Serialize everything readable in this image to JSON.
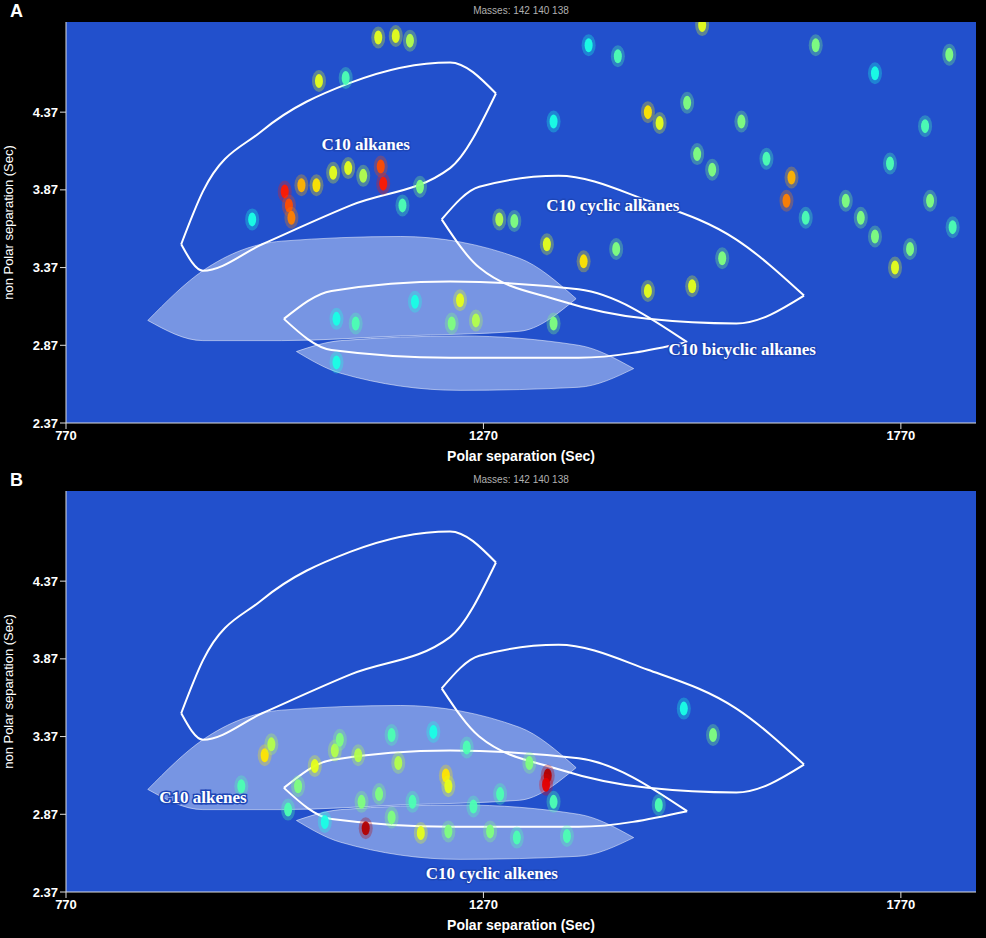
{
  "chart_data": [
    {
      "type": "scatter",
      "title": "A",
      "subtitle": "Masses: 142 140 138",
      "x_label": "Polar separation (Sec)",
      "y_label": "non Polar separation (Sec)",
      "xlim": [
        770,
        1860
      ],
      "ylim": [
        2.37,
        4.95
      ],
      "xticks": [
        770,
        1270,
        1770
      ],
      "yticks": [
        2.37,
        2.87,
        3.37,
        3.87,
        4.37
      ],
      "grid": false,
      "points": {
        "x": [
          1073,
          1144,
          1165,
          1182,
          1105,
          1032,
          1037,
          1040,
          1052,
          1070,
          1090,
          1108,
          1126,
          1147,
          1150,
          1194,
          1173,
          1242,
          1261,
          1232,
          1188,
          1289,
          1307,
          1346,
          1390,
          1429,
          1467,
          1520,
          1556,
          1633,
          1639,
          1656,
          1467,
          1481,
          1514,
          1526,
          1544,
          1579,
          1668,
          1532,
          1704,
          1722,
          1739,
          1763,
          1781,
          1805,
          1832,
          1757,
          1799,
          1828,
          1739,
          1396,
          1354,
          993,
          1354,
          1094,
          1117,
          1094,
          1431,
          1609
        ],
        "y": [
          4.57,
          4.85,
          4.86,
          4.83,
          4.59,
          3.86,
          3.77,
          3.69,
          3.9,
          3.9,
          3.98,
          4.01,
          3.96,
          4.02,
          3.91,
          3.89,
          3.77,
          3.16,
          3.03,
          3.01,
          3.15,
          3.68,
          3.67,
          3.52,
          3.41,
          3.49,
          3.22,
          3.25,
          3.43,
          3.8,
          3.95,
          3.69,
          4.37,
          4.3,
          4.43,
          4.1,
          4.0,
          4.31,
          4.8,
          4.93,
          3.8,
          3.69,
          3.57,
          3.37,
          3.49,
          3.8,
          3.63,
          4.04,
          4.28,
          4.74,
          4.62,
          4.8,
          4.31,
          3.68,
          3.01,
          3.04,
          3.01,
          2.76,
          4.73,
          4.07
        ],
        "intensity": [
          0.6,
          0.6,
          0.6,
          0.55,
          0.45,
          0.85,
          0.8,
          0.75,
          0.7,
          0.65,
          0.6,
          0.6,
          0.55,
          0.8,
          0.85,
          0.5,
          0.45,
          0.6,
          0.55,
          0.5,
          0.4,
          0.55,
          0.5,
          0.6,
          0.65,
          0.5,
          0.6,
          0.6,
          0.5,
          0.75,
          0.7,
          0.45,
          0.65,
          0.6,
          0.5,
          0.5,
          0.5,
          0.5,
          0.5,
          0.6,
          0.5,
          0.5,
          0.5,
          0.6,
          0.5,
          0.5,
          0.45,
          0.45,
          0.45,
          0.5,
          0.4,
          0.4,
          0.4,
          0.4,
          0.5,
          0.4,
          0.45,
          0.4,
          0.45,
          0.45
        ]
      },
      "regions": [
        {
          "type": "area",
          "x": [
            868,
            934,
            1028,
            1171,
            1313,
            1381
          ],
          "lower": [
            3.03,
            2.9,
            2.9,
            2.93,
            2.96,
            3.17
          ],
          "upper": [
            3.03,
            3.35,
            3.54,
            3.57,
            3.43,
            3.17
          ]
        },
        {
          "type": "area",
          "x": [
            1046,
            1099,
            1242,
            1384,
            1450
          ],
          "lower": [
            2.83,
            2.69,
            2.58,
            2.6,
            2.72
          ],
          "upper": [
            2.83,
            2.9,
            2.93,
            2.87,
            2.72
          ]
        },
        {
          "type": "line",
          "x": [
            908,
            934,
            1005,
            1111,
            1230,
            1285
          ],
          "lower": [
            3.52,
            3.35,
            3.52,
            3.77,
            4.01,
            4.49
          ],
          "upper": [
            3.52,
            3.86,
            4.25,
            4.56,
            4.69,
            4.49
          ]
        },
        {
          "type": "line",
          "x": [
            1220,
            1265,
            1360,
            1467,
            1573,
            1654
          ],
          "lower": [
            3.68,
            3.37,
            3.16,
            3.04,
            3.01,
            3.19
          ],
          "upper": [
            3.68,
            3.89,
            3.96,
            3.8,
            3.55,
            3.19
          ]
        },
        {
          "type": "line",
          "x": [
            1031,
            1088,
            1230,
            1384,
            1514
          ],
          "lower": [
            3.04,
            2.84,
            2.79,
            2.79,
            2.89
          ],
          "upper": [
            3.04,
            3.22,
            3.28,
            3.23,
            2.89
          ]
        }
      ],
      "annotations": [
        {
          "text": "C10 alkanes",
          "x": 1129,
          "y": 4.16
        },
        {
          "text": "C10 cyclic alkanes",
          "x": 1425,
          "y": 3.77
        },
        {
          "text": "C10 bicyclic alkanes",
          "x": 1580,
          "y": 2.84
        }
      ]
    },
    {
      "type": "scatter",
      "title": "B",
      "subtitle": "Masses: 142 140 138",
      "x_label": "Polar separation (Sec)",
      "y_label": "non Polar separation (Sec)",
      "xlim": [
        770,
        1860
      ],
      "ylim": [
        2.37,
        4.95
      ],
      "xticks": [
        770,
        1270,
        1770
      ],
      "yticks": [
        2.37,
        2.87,
        3.37,
        3.87,
        4.37
      ],
      "grid": false,
      "points": {
        "x": [
          1008,
          1016,
          1048,
          1068,
          1092,
          1098,
          1120,
          1124,
          1145,
          1160,
          1168,
          1185,
          1225,
          1228,
          1250,
          1258,
          1290,
          1325,
          1347,
          1345,
          1354,
          1129,
          1195,
          1228,
          1278,
          1310,
          1370,
          1480,
          1545,
          1510,
          1160,
          1210,
          980,
          1036,
          1080
        ],
        "y": [
          3.25,
          3.32,
          3.05,
          3.18,
          3.28,
          3.35,
          3.25,
          2.95,
          3.0,
          2.85,
          3.2,
          2.95,
          3.12,
          3.05,
          3.3,
          2.92,
          3.0,
          3.2,
          3.12,
          3.06,
          2.95,
          2.78,
          2.75,
          2.76,
          2.76,
          2.72,
          2.73,
          2.93,
          3.38,
          3.55,
          3.38,
          3.4,
          3.05,
          2.9,
          2.82
        ],
        "intensity": [
          0.65,
          0.55,
          0.5,
          0.6,
          0.55,
          0.5,
          0.55,
          0.5,
          0.5,
          0.5,
          0.55,
          0.45,
          0.65,
          0.6,
          0.45,
          0.45,
          0.45,
          0.5,
          0.95,
          0.9,
          0.45,
          0.95,
          0.6,
          0.5,
          0.5,
          0.45,
          0.45,
          0.45,
          0.5,
          0.4,
          0.45,
          0.4,
          0.45,
          0.45,
          0.4
        ]
      },
      "regions": [
        {
          "type": "area",
          "x": [
            868,
            934,
            1028,
            1171,
            1313,
            1381
          ],
          "lower": [
            3.03,
            2.9,
            2.9,
            2.93,
            2.96,
            3.17
          ],
          "upper": [
            3.03,
            3.35,
            3.54,
            3.57,
            3.43,
            3.17
          ]
        },
        {
          "type": "area",
          "x": [
            1046,
            1099,
            1242,
            1384,
            1450
          ],
          "lower": [
            2.83,
            2.69,
            2.58,
            2.6,
            2.72
          ],
          "upper": [
            2.83,
            2.9,
            2.93,
            2.87,
            2.72
          ]
        },
        {
          "type": "line",
          "x": [
            908,
            934,
            1005,
            1111,
            1230,
            1285
          ],
          "lower": [
            3.52,
            3.35,
            3.52,
            3.77,
            4.01,
            4.49
          ],
          "upper": [
            3.52,
            3.86,
            4.25,
            4.56,
            4.69,
            4.49
          ]
        },
        {
          "type": "line",
          "x": [
            1220,
            1265,
            1360,
            1467,
            1573,
            1654
          ],
          "lower": [
            3.68,
            3.37,
            3.16,
            3.04,
            3.01,
            3.19
          ],
          "upper": [
            3.68,
            3.89,
            3.96,
            3.8,
            3.55,
            3.19
          ]
        },
        {
          "type": "line",
          "x": [
            1031,
            1088,
            1230,
            1384,
            1514
          ],
          "lower": [
            3.04,
            2.84,
            2.79,
            2.79,
            2.89
          ],
          "upper": [
            3.04,
            3.22,
            3.28,
            3.23,
            2.89
          ]
        }
      ],
      "annotations": [
        {
          "text": "C10 alkenes",
          "x": 934,
          "y": 2.98
        },
        {
          "text": "C10 cyclic alkenes",
          "x": 1280,
          "y": 2.49
        }
      ]
    }
  ]
}
